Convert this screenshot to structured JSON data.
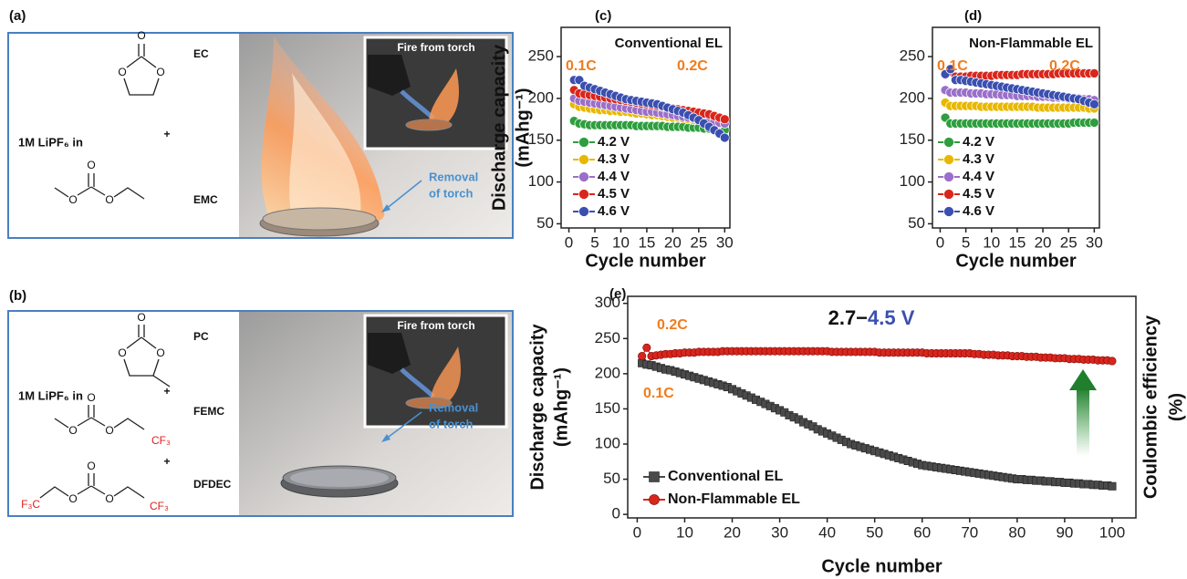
{
  "panels": [
    {
      "label": "(a)",
      "salt": "1M LiPF₆ in",
      "atom": "O",
      "solvents": [
        "EC",
        "EMC"
      ],
      "plus": [
        "+"
      ],
      "inset": "Fire from torch",
      "removal": [
        "Removal",
        "of torch"
      ]
    },
    {
      "label": "(b)",
      "salt": "1M LiPF₆ in",
      "atom": "O",
      "solvents": [
        "PC",
        "FEMC",
        "DFDEC"
      ],
      "plus": [
        "+",
        "+"
      ],
      "groups": [
        "CF₃",
        "F₃C",
        "CF₃"
      ],
      "inset": "Fire from torch",
      "removal": [
        "Removal",
        "of torch"
      ]
    }
  ],
  "chart_data": [
    {
      "type": "line",
      "panel_label": "(c)",
      "xlabel": "Cycle number",
      "ylabel": [
        "Discharge capacity",
        "(mAhg⁻¹)"
      ],
      "xlim": [
        -1.5,
        31
      ],
      "ylim": [
        45,
        285
      ],
      "xticks": [
        0,
        5,
        10,
        15,
        20,
        25,
        30
      ],
      "yticks": [
        50,
        100,
        150,
        200,
        250
      ],
      "annotations": [
        {
          "text": "Conventional EL",
          "color": "#111111"
        },
        {
          "text": "0.1C",
          "color": "#f07c1c"
        },
        {
          "text": "0.2C",
          "color": "#f07c1c"
        }
      ],
      "legend": "lower left",
      "x": [
        1,
        2,
        3,
        4,
        5,
        6,
        7,
        8,
        9,
        10,
        11,
        12,
        13,
        14,
        15,
        16,
        17,
        18,
        19,
        20,
        21,
        22,
        23,
        24,
        25,
        26,
        27,
        28,
        29,
        30
      ],
      "series": [
        {
          "name": "4.2 V",
          "color": "#2e9e3e",
          "values": [
            173,
            170,
            169,
            168,
            168,
            168,
            168,
            168,
            168,
            168,
            168,
            168,
            167,
            167,
            167,
            167,
            167,
            167,
            166,
            166,
            166,
            166,
            165,
            165,
            165,
            164,
            164,
            163,
            163,
            162
          ]
        },
        {
          "name": "4.3 V",
          "color": "#e8b800",
          "values": [
            193,
            190,
            189,
            188,
            187,
            186,
            186,
            185,
            185,
            184,
            184,
            183,
            182,
            182,
            181,
            180,
            180,
            179,
            178,
            177,
            177,
            176,
            175,
            174,
            174,
            173,
            172,
            171,
            170,
            170
          ]
        },
        {
          "name": "4.4 V",
          "color": "#9b6fc9",
          "values": [
            200,
            197,
            196,
            195,
            194,
            193,
            192,
            191,
            190,
            189,
            188,
            187,
            186,
            185,
            184,
            184,
            183,
            182,
            181,
            180,
            179,
            178,
            177,
            176,
            175,
            174,
            173,
            172,
            171,
            170
          ]
        },
        {
          "name": "4.5 V",
          "color": "#d9261c",
          "values": [
            210,
            206,
            205,
            204,
            203,
            202,
            201,
            200,
            199,
            198,
            197,
            196,
            195,
            194,
            193,
            192,
            191,
            190,
            189,
            188,
            187,
            186,
            185,
            184,
            183,
            182,
            181,
            179,
            177,
            175
          ]
        },
        {
          "name": "4.6 V",
          "color": "#3a4fb0",
          "values": [
            222,
            222,
            215,
            213,
            211,
            209,
            207,
            205,
            203,
            201,
            199,
            198,
            197,
            196,
            195,
            194,
            193,
            191,
            189,
            187,
            185,
            183,
            180,
            177,
            174,
            170,
            166,
            162,
            158,
            153
          ]
        }
      ]
    },
    {
      "type": "line",
      "panel_label": "(d)",
      "xlabel": "Cycle number",
      "xlim": [
        -1.5,
        31
      ],
      "ylim": [
        45,
        285
      ],
      "xticks": [
        0,
        5,
        10,
        15,
        20,
        25,
        30
      ],
      "yticks": [
        50,
        100,
        150,
        200,
        250
      ],
      "annotations": [
        {
          "text": "Non-Flammable EL",
          "color": "#111111"
        },
        {
          "text": "0.1C",
          "color": "#f07c1c"
        },
        {
          "text": "0.2C",
          "color": "#f07c1c"
        }
      ],
      "legend": "lower left",
      "x": [
        1,
        2,
        3,
        4,
        5,
        6,
        7,
        8,
        9,
        10,
        11,
        12,
        13,
        14,
        15,
        16,
        17,
        18,
        19,
        20,
        21,
        22,
        23,
        24,
        25,
        26,
        27,
        28,
        29,
        30
      ],
      "series": [
        {
          "name": "4.2 V",
          "color": "#2e9e3e",
          "values": [
            177,
            170,
            170,
            170,
            170,
            170,
            170,
            170,
            170,
            170,
            170,
            170,
            170,
            170,
            170,
            170,
            170,
            170,
            170,
            170,
            170,
            170,
            170,
            170,
            170,
            171,
            171,
            171,
            171,
            171
          ]
        },
        {
          "name": "4.3 V",
          "color": "#e8b800",
          "values": [
            195,
            191,
            191,
            191,
            191,
            191,
            191,
            190,
            190,
            190,
            190,
            190,
            190,
            190,
            190,
            190,
            190,
            190,
            189,
            189,
            189,
            189,
            189,
            189,
            189,
            189,
            189,
            189,
            188,
            188
          ]
        },
        {
          "name": "4.4 V",
          "color": "#9b6fc9",
          "values": [
            210,
            207,
            207,
            207,
            207,
            206,
            206,
            206,
            205,
            205,
            205,
            204,
            204,
            204,
            203,
            203,
            203,
            203,
            202,
            202,
            202,
            201,
            201,
            201,
            200,
            200,
            200,
            199,
            199,
            198
          ]
        },
        {
          "name": "4.5 V",
          "color": "#d9261c",
          "values": [
            228,
            232,
            226,
            226,
            226,
            227,
            227,
            227,
            227,
            227,
            228,
            228,
            228,
            228,
            228,
            229,
            229,
            229,
            229,
            229,
            229,
            229,
            230,
            230,
            230,
            230,
            230,
            230,
            230,
            230
          ]
        },
        {
          "name": "4.6 V",
          "color": "#3a4fb0",
          "values": [
            229,
            235,
            222,
            222,
            221,
            220,
            219,
            218,
            217,
            216,
            215,
            214,
            213,
            212,
            211,
            210,
            209,
            208,
            207,
            206,
            205,
            204,
            203,
            202,
            201,
            200,
            199,
            197,
            195,
            193
          ]
        }
      ]
    },
    {
      "type": "line",
      "panel_label": "(e)",
      "xlabel": "Cycle number",
      "ylabel": [
        "Discharge capacity",
        "(mAhg⁻¹)"
      ],
      "y2label": [
        "Coulombic efficiency",
        "(%)"
      ],
      "xlim": [
        -2,
        105
      ],
      "ylim": [
        -5,
        310
      ],
      "xticks": [
        0,
        10,
        20,
        30,
        40,
        50,
        60,
        70,
        80,
        90,
        100
      ],
      "yticks": [
        0,
        50,
        100,
        150,
        200,
        250,
        300
      ],
      "annotations": [
        {
          "parts": [
            {
              "text": "2.7−",
              "color": "#111111"
            },
            {
              "text": "4.5 V",
              "color": "#3a4fb0"
            }
          ]
        },
        {
          "text": "0.2C",
          "color": "#f07c1c"
        },
        {
          "text": "0.1C",
          "color": "#f07c1c"
        }
      ],
      "legend": "lower left",
      "x": [
        1,
        2,
        3,
        4,
        5,
        6,
        7,
        8,
        9,
        10,
        11,
        12,
        13,
        14,
        15,
        16,
        17,
        18,
        19,
        20,
        21,
        22,
        23,
        24,
        25,
        26,
        27,
        28,
        29,
        30,
        31,
        32,
        33,
        34,
        35,
        36,
        37,
        38,
        39,
        40,
        41,
        42,
        43,
        44,
        45,
        46,
        47,
        48,
        49,
        50,
        51,
        52,
        53,
        54,
        55,
        56,
        57,
        58,
        59,
        60,
        61,
        62,
        63,
        64,
        65,
        66,
        67,
        68,
        69,
        70,
        71,
        72,
        73,
        74,
        75,
        76,
        77,
        78,
        79,
        80,
        81,
        82,
        83,
        84,
        85,
        86,
        87,
        88,
        89,
        90,
        91,
        92,
        93,
        94,
        95,
        96,
        97,
        98,
        99,
        100
      ],
      "series": [
        {
          "name": "Conventional EL",
          "color": "#4a4a4a",
          "marker": "square",
          "values": [
            215,
            213,
            212,
            210,
            208,
            206,
            205,
            203,
            201,
            199,
            197,
            195,
            193,
            191,
            189,
            187,
            185,
            183,
            181,
            178,
            175,
            172,
            169,
            166,
            163,
            160,
            157,
            154,
            151,
            148,
            145,
            141,
            138,
            135,
            131,
            128,
            125,
            121,
            118,
            115,
            112,
            109,
            106,
            103,
            100,
            98,
            96,
            94,
            92,
            90,
            88,
            86,
            84,
            82,
            80,
            78,
            76,
            74,
            72,
            70,
            69,
            68,
            67,
            66,
            65,
            64,
            63,
            62,
            61,
            60,
            59,
            58,
            57,
            56,
            55,
            54,
            53,
            52,
            51,
            50,
            50,
            49,
            49,
            48,
            48,
            47,
            47,
            46,
            46,
            45,
            45,
            44,
            44,
            43,
            43,
            42,
            42,
            41,
            41,
            40
          ]
        },
        {
          "name": "Non-Flammable EL",
          "color": "#d9261c",
          "marker": "circle",
          "values": [
            225,
            237,
            225,
            226,
            227,
            228,
            228,
            229,
            229,
            230,
            230,
            230,
            231,
            231,
            231,
            231,
            231,
            232,
            232,
            232,
            232,
            232,
            232,
            232,
            232,
            232,
            232,
            232,
            232,
            232,
            232,
            232,
            232,
            232,
            232,
            232,
            232,
            232,
            232,
            232,
            231,
            231,
            231,
            231,
            231,
            231,
            231,
            231,
            231,
            231,
            230,
            230,
            230,
            230,
            230,
            230,
            230,
            230,
            230,
            230,
            229,
            229,
            229,
            229,
            229,
            229,
            229,
            229,
            229,
            229,
            228,
            228,
            227,
            227,
            227,
            226,
            226,
            226,
            225,
            225,
            225,
            224,
            224,
            224,
            223,
            223,
            223,
            222,
            222,
            222,
            221,
            221,
            221,
            220,
            220,
            220,
            219,
            219,
            219,
            218
          ]
        }
      ]
    }
  ]
}
